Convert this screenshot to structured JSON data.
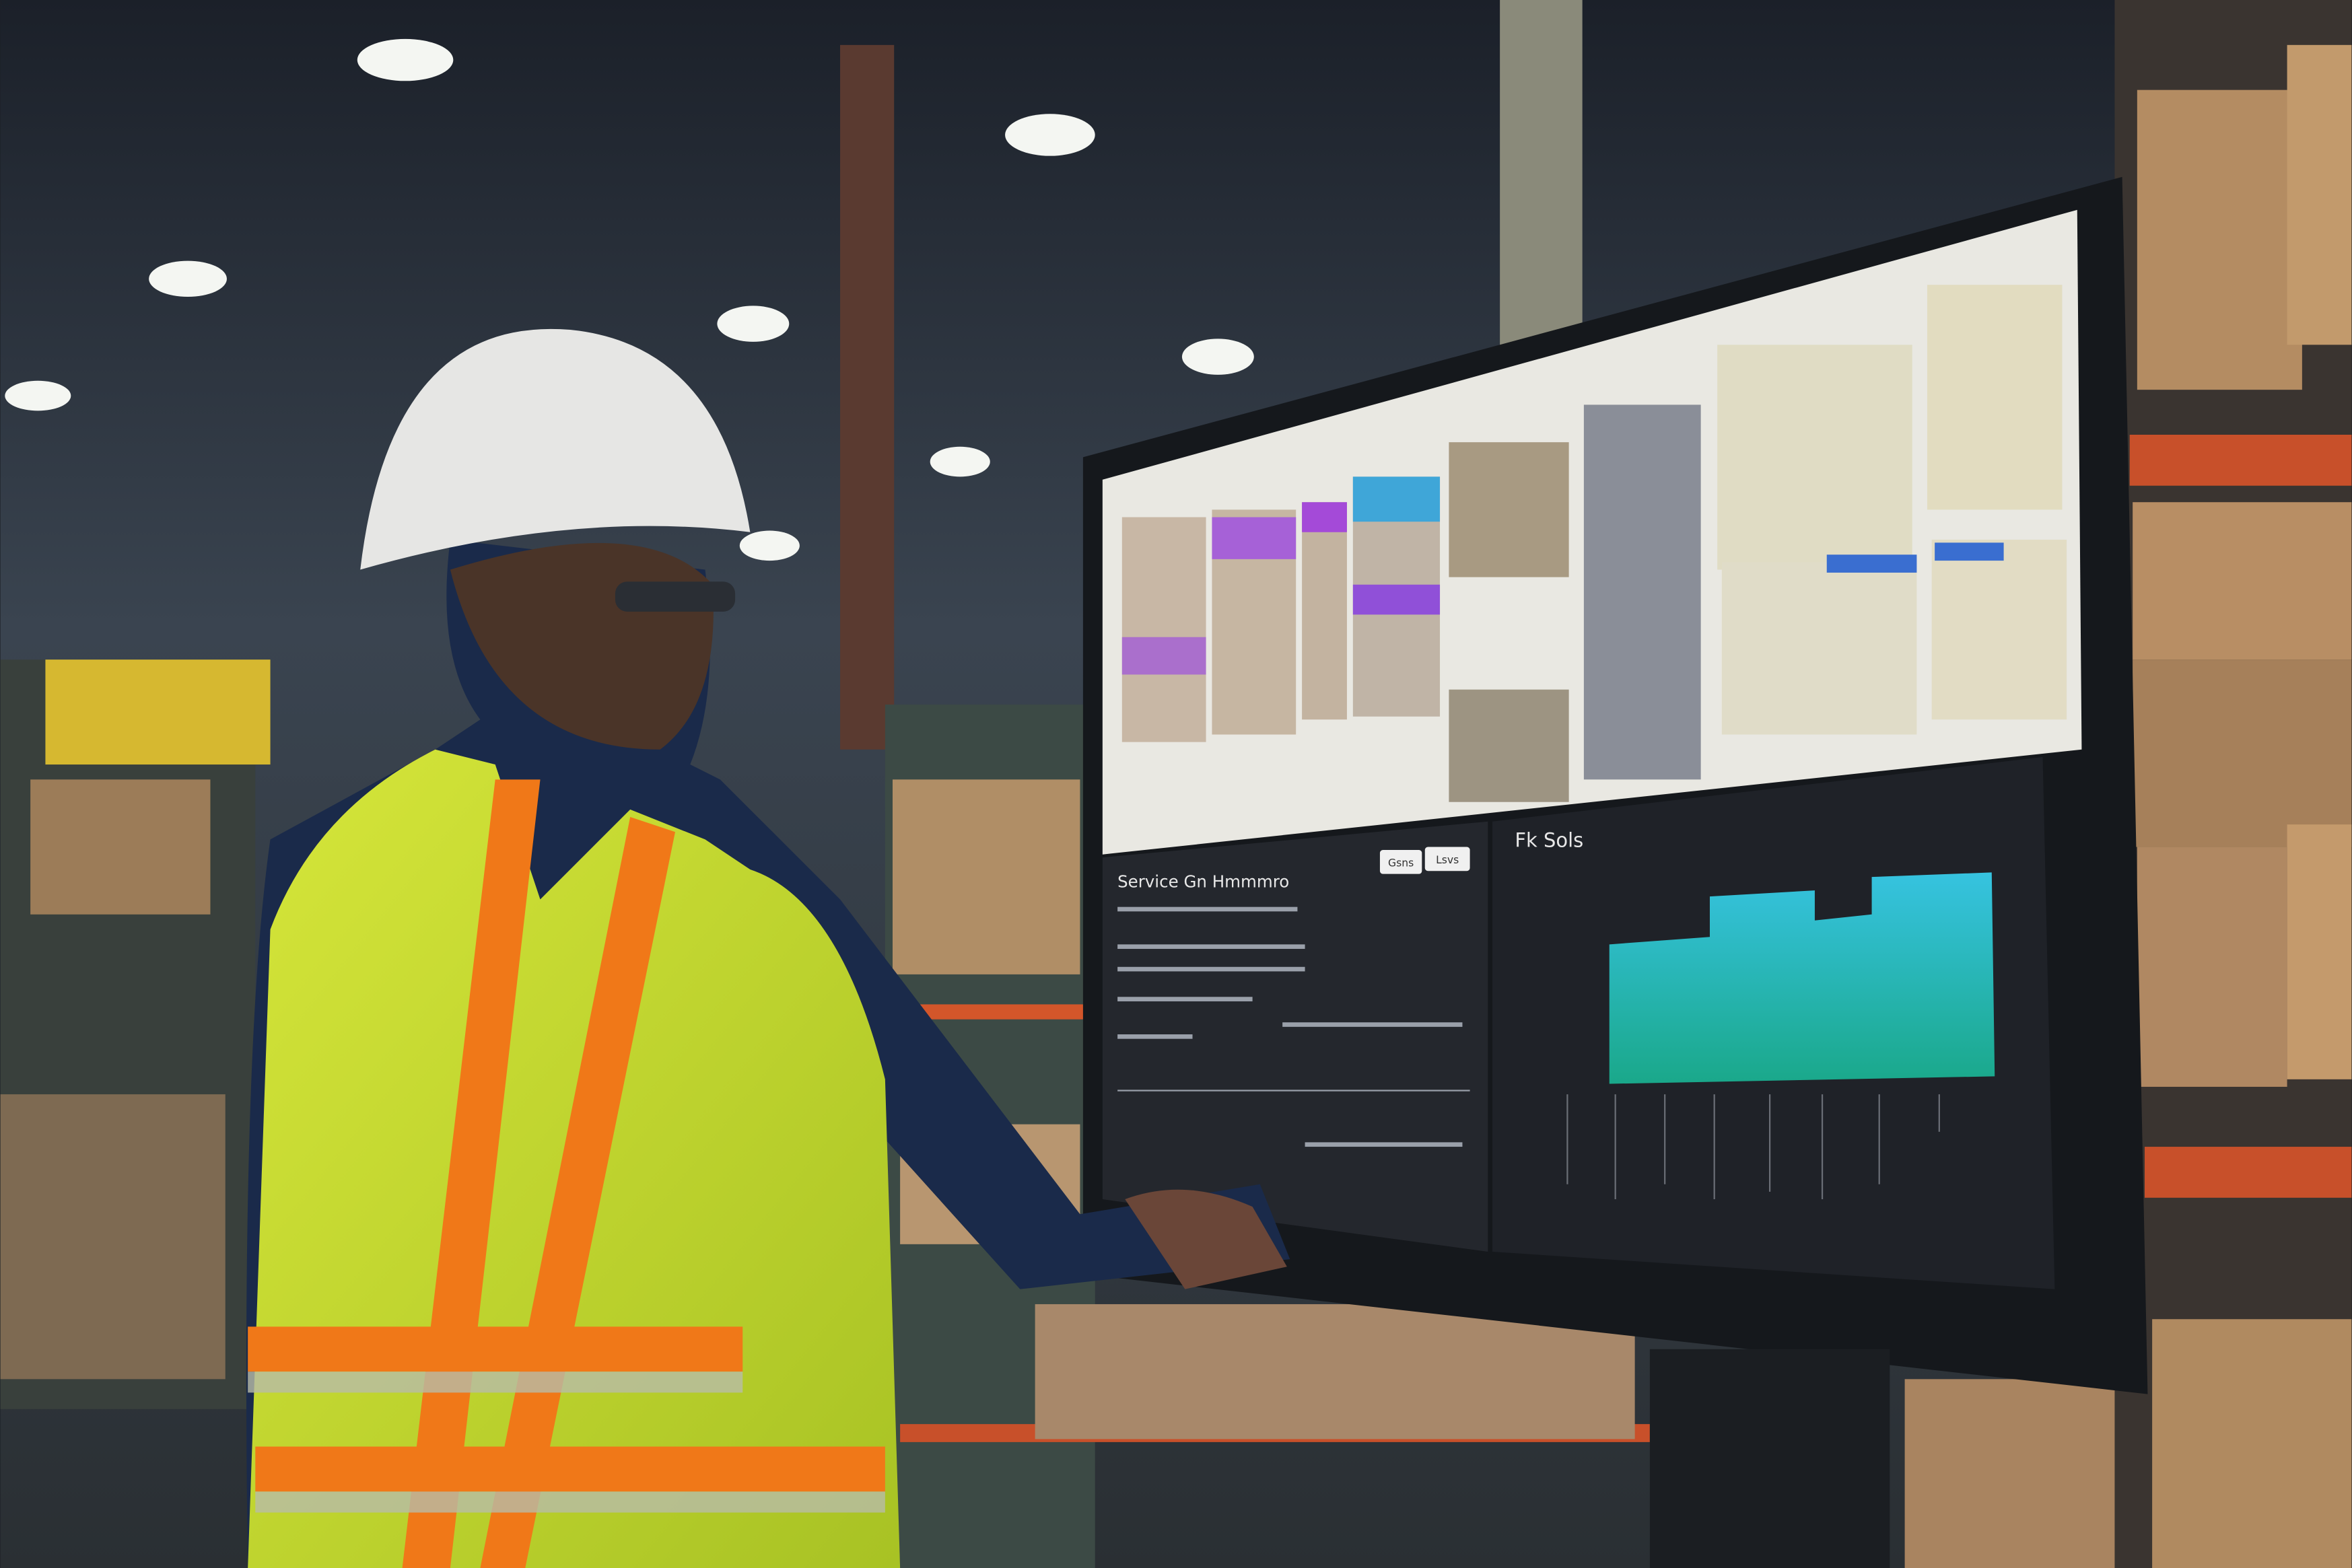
{
  "screen": {
    "left_panel_title": "Service Gn Hmmmro",
    "right_panel_title": "Fk Sols",
    "buttons": [
      "Gsns",
      "Lsvs"
    ]
  }
}
